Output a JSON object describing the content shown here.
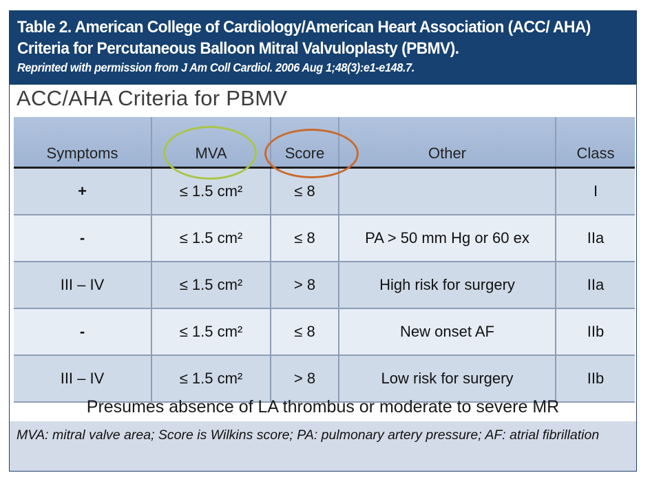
{
  "header": {
    "title": "Table 2. American College of Cardiology/American Heart Association (ACC/ AHA) Criteria for Percutaneous Balloon Mitral Valvuloplasty (PBMV).",
    "reprint": "Reprinted with permission from J Am Coll Cardiol. 2006 Aug 1;48(3):e1-e148.7."
  },
  "slide": {
    "title": "ACC/AHA Criteria for PBMV",
    "columns": [
      "Symptoms",
      "MVA",
      "Score",
      "Other",
      "Class"
    ],
    "rows": [
      {
        "symptoms": "+",
        "mva": "≤ 1.5 cm²",
        "score": "≤ 8",
        "other": "",
        "class": "I"
      },
      {
        "symptoms": "-",
        "mva": "≤ 1.5 cm²",
        "score": "≤ 8",
        "other": "PA > 50 mm Hg or 60 ex",
        "class": "IIa"
      },
      {
        "symptoms": "III – IV",
        "mva": "≤ 1.5 cm²",
        "score": "> 8",
        "other": "High risk for surgery",
        "class": "IIa"
      },
      {
        "symptoms": "-",
        "mva": "≤ 1.5 cm²",
        "score": "≤ 8",
        "other": "New onset AF",
        "class": "IIb"
      },
      {
        "symptoms": "III – IV",
        "mva": "≤ 1.5 cm²",
        "score": "> 8",
        "other": "Low risk for surgery",
        "class": "IIb"
      }
    ],
    "footer": "Presumes absence of LA thrombus or moderate to severe MR"
  },
  "notes": "MVA: mitral valve area; Score is Wilkins score; PA: pulmonary artery pressure; AF: atrial fibrillation",
  "colors": {
    "header_bg": "#164170",
    "table_header_bg": "#a8bcd9",
    "row_dark": "#cfdae8",
    "row_light": "#e6edf5",
    "notes_bg": "#d3dbe8",
    "highlight_mva": "#a9c64a",
    "highlight_score": "#c96a2e"
  }
}
